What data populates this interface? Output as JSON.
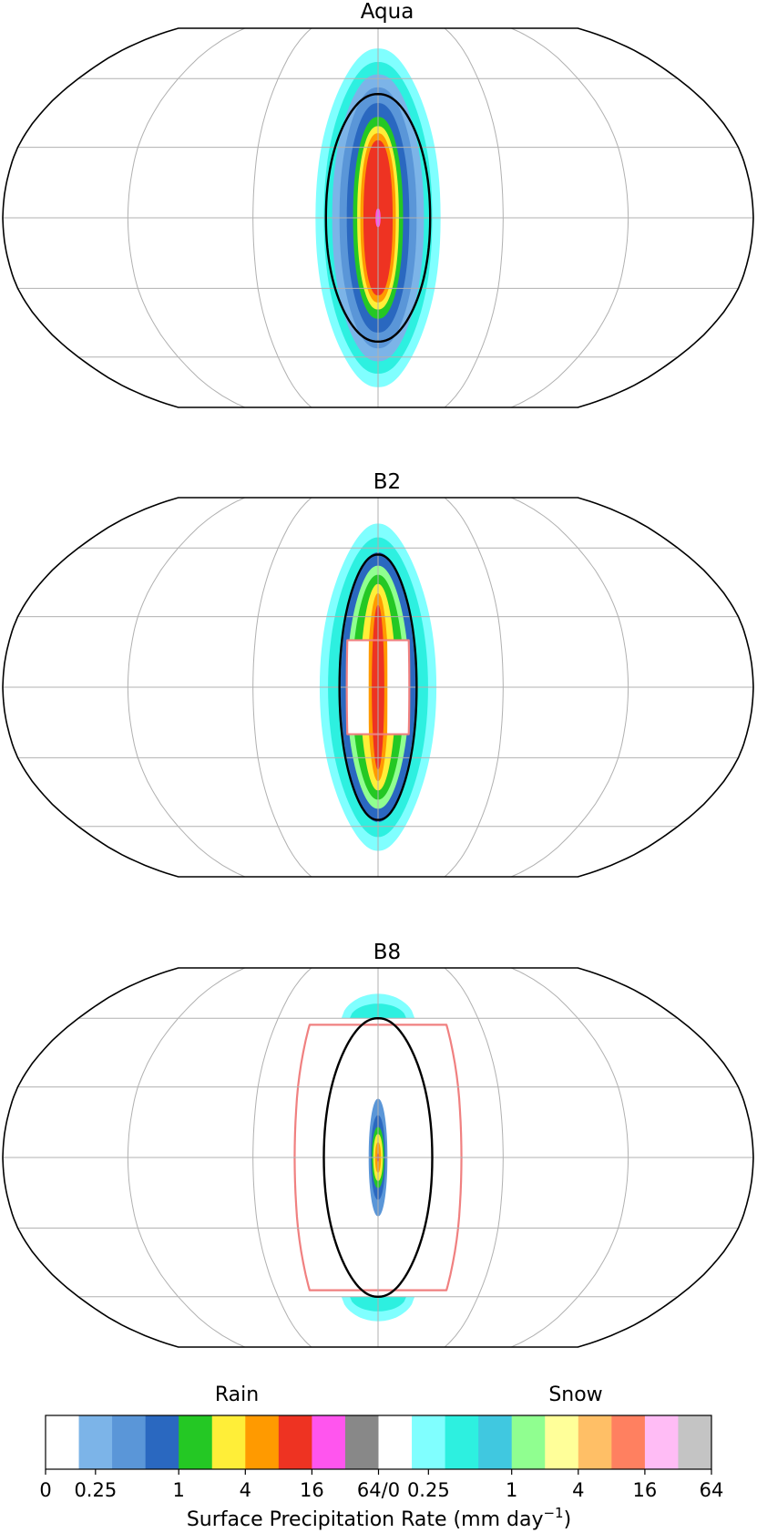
{
  "chart_data": {
    "type": "heatmap",
    "projection": "Robinson",
    "panels": [
      {
        "title": "Aqua",
        "substellar_contour": true,
        "land_outline": "none",
        "precip_bands": [
          {
            "color": "#80ffff",
            "rx": 30.0,
            "ry": 75.0
          },
          {
            "color": "#2df0e0",
            "rx": 26.0,
            "ry": 68.0
          },
          {
            "color": "#7cb4e8",
            "rx": 22.0,
            "ry": 62.0
          },
          {
            "color": "#5a96d8",
            "rx": 18.5,
            "ry": 56.0
          },
          {
            "color": "#2a68c0",
            "rx": 15.0,
            "ry": 49.0
          },
          {
            "color": "#24c824",
            "rx": 12.0,
            "ry": 43.0
          },
          {
            "color": "#ffee38",
            "rx": 10.0,
            "ry": 39.0
          },
          {
            "color": "#ff9a00",
            "rx": 8.5,
            "ry": 36.0
          },
          {
            "color": "#ee3322",
            "rx": 7.0,
            "ry": 33.0
          },
          {
            "color": "#ff55ee",
            "rx": 1.2,
            "ry": 4.0
          }
        ],
        "contour": {
          "rx": 25.0,
          "ry": 53.0
        }
      },
      {
        "title": "B2",
        "substellar_contour": true,
        "land_outline": "box",
        "land_box": {
          "lon": [
            -15,
            15
          ],
          "lat": [
            -20,
            20
          ]
        },
        "precip_bands": [
          {
            "color": "#80ffff",
            "rx": 28.0,
            "ry": 72.0
          },
          {
            "color": "#2df0e0",
            "rx": 24.0,
            "ry": 65.0
          },
          {
            "color": "#2a68c0",
            "rx": 18.0,
            "ry": 58.0
          },
          {
            "color": "#90ff90",
            "rx": 15.0,
            "ry": 52.0
          },
          {
            "color": "#24c824",
            "rx": 12.5,
            "ry": 48.0
          },
          {
            "color": "#ffee38",
            "rx": 8.5,
            "ry": 44.0
          },
          {
            "color": "#ff9a00",
            "rx": 5.0,
            "ry": 40.0
          },
          {
            "color": "#ee3322",
            "rx": 3.0,
            "ry": 35.0
          }
        ],
        "contour": {
          "rx": 18.5,
          "ry": 57.0
        }
      },
      {
        "title": "B8",
        "substellar_contour": true,
        "land_outline": "box",
        "land_box": {
          "lon": [
            -40,
            40
          ],
          "lat": [
            -57,
            57
          ]
        },
        "precip_bands": [
          {
            "color": "#5a96d8",
            "rx": 4.5,
            "ry": 25.0
          },
          {
            "color": "#2a68c0",
            "rx": 3.5,
            "ry": 18.0
          },
          {
            "color": "#24c824",
            "rx": 3.0,
            "ry": 13.0
          },
          {
            "color": "#ffee38",
            "rx": 2.3,
            "ry": 10.0
          },
          {
            "color": "#ff9a00",
            "rx": 1.4,
            "ry": 6.5
          },
          {
            "color": "#ee3322",
            "rx": 0.5,
            "ry": 2.0
          }
        ],
        "polar_caps": [
          {
            "color": "#80ffff",
            "lat_from": 60,
            "lat_to": 72,
            "rx": 22.0
          },
          {
            "color": "#2df0e0",
            "lat_from": 60,
            "lat_to": 67,
            "rx": 17.0
          },
          {
            "color": "#80ffff",
            "lat_from": -72,
            "lat_to": -60,
            "rx": 22.0
          },
          {
            "color": "#2df0e0",
            "lat_from": -67,
            "lat_to": -60,
            "rx": 17.0
          }
        ],
        "contour": {
          "rx": 26.0,
          "ry": 60.0
        }
      }
    ],
    "colorbar": {
      "label": "Surface Precipitation Rate (mm day",
      "label_exponent": "−1",
      "label_close": ")",
      "rain_header": "Rain",
      "snow_header": "Snow",
      "colors": [
        "#ffffff",
        "#7cb4e8",
        "#5a96d8",
        "#2a68c0",
        "#24c824",
        "#ffee38",
        "#ff9a00",
        "#ee3322",
        "#ff55ee",
        "#888888",
        "#ffffff",
        "#80ffff",
        "#2df0e0",
        "#40c8e0",
        "#90ff90",
        "#ffff99",
        "#ffbf66",
        "#ff8060",
        "#ffbcf5",
        "#c4c4c4"
      ],
      "ticks": [
        {
          "label": "0",
          "boundary": 0
        },
        {
          "label": "0.25",
          "boundary": 1.5
        },
        {
          "label": "1",
          "boundary": 4
        },
        {
          "label": "4",
          "boundary": 6
        },
        {
          "label": "16",
          "boundary": 8
        },
        {
          "label": "64/0",
          "boundary": 10
        },
        {
          "label": "0.25",
          "boundary": 11.5
        },
        {
          "label": "1",
          "boundary": 14
        },
        {
          "label": "4",
          "boundary": 16
        },
        {
          "label": "16",
          "boundary": 18
        },
        {
          "label": "64",
          "boundary": 20
        }
      ]
    },
    "colors": {
      "land_outline": "#f08080",
      "grid": "#b0b0b0",
      "contour": "#000000",
      "border": "#000000"
    }
  }
}
